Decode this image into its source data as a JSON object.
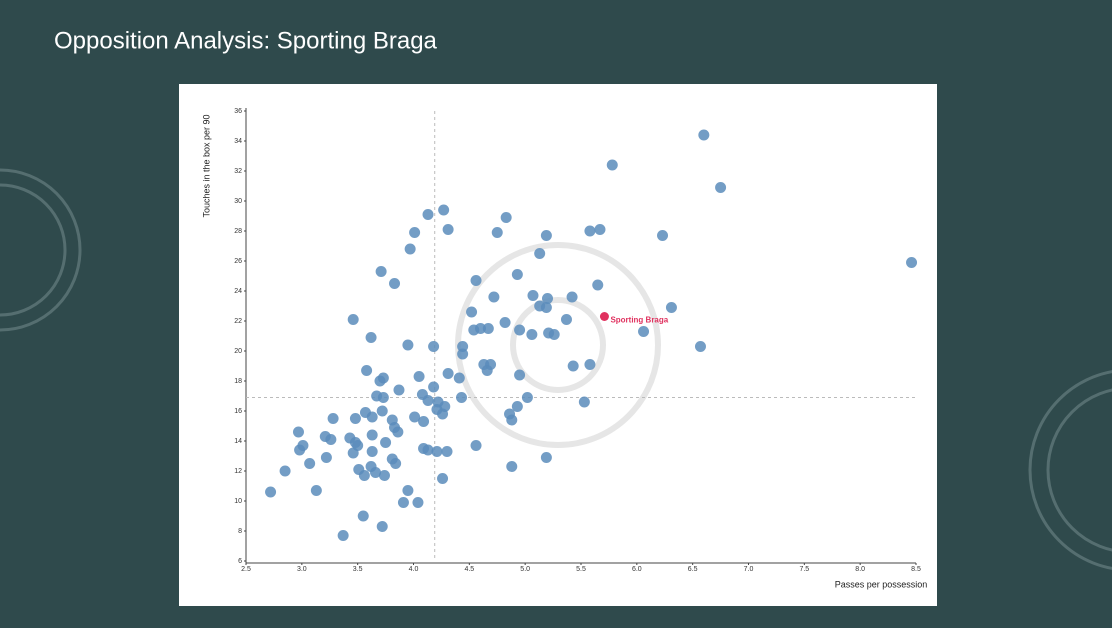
{
  "chart_data": {
    "type": "scatter",
    "title": "Opposition Analysis: Sporting Braga",
    "x_label": "Passes per possession",
    "y_label": "Touches in the box per 90",
    "color": "#5a8cbb",
    "x": [
      6.6,
      5.78,
      6.75,
      4.27,
      4.13,
      4.83,
      4.31,
      4.01,
      4.75,
      5.58,
      5.67,
      5.19,
      6.23,
      3.97,
      5.13,
      8.46,
      3.71,
      4.93,
      4.56,
      3.83,
      5.65,
      4.72,
      5.07,
      5.2,
      5.42,
      5.13,
      5.19,
      6.31,
      4.52,
      3.46,
      4.82,
      5.37,
      4.54,
      4.6,
      4.67,
      4.95,
      5.21,
      5.26,
      5.06,
      6.06,
      3.62,
      3.95,
      4.18,
      4.44,
      4.44,
      6.57,
      4.63,
      4.69,
      4.66,
      5.43,
      5.58,
      3.58,
      4.31,
      4.95,
      4.05,
      4.41,
      3.73,
      3.7,
      3.87,
      4.18,
      3.67,
      3.73,
      4.08,
      4.43,
      5.02,
      4.13,
      4.22,
      4.28,
      4.21,
      4.93,
      5.53,
      3.57,
      3.72,
      3.48,
      3.28,
      3.63,
      3.81,
      4.01,
      4.09,
      4.26,
      4.86,
      4.88,
      3.83,
      3.86,
      3.63,
      2.97,
      3.21,
      3.26,
      3.43,
      3.48,
      3.5,
      3.75,
      3.01,
      2.98,
      4.09,
      4.13,
      4.21,
      4.3,
      4.56,
      3.46,
      3.63,
      3.07,
      3.22,
      3.81,
      3.84,
      3.51,
      3.62,
      2.85,
      3.66,
      3.56,
      3.74,
      4.88,
      5.19,
      4.26,
      2.72,
      3.13,
      3.95,
      3.91,
      4.04,
      3.55,
      3.72,
      3.37
    ],
    "y": [
      34.4,
      32.4,
      30.9,
      29.4,
      29.1,
      28.9,
      28.1,
      27.9,
      27.9,
      28.0,
      28.1,
      27.7,
      27.7,
      26.8,
      26.5,
      25.9,
      25.3,
      25.1,
      24.7,
      24.5,
      24.4,
      23.6,
      23.7,
      23.5,
      23.6,
      23.0,
      22.9,
      22.9,
      22.6,
      22.1,
      21.9,
      22.1,
      21.4,
      21.5,
      21.5,
      21.4,
      21.2,
      21.1,
      21.1,
      21.3,
      20.9,
      20.4,
      20.3,
      20.3,
      19.8,
      20.3,
      19.1,
      19.1,
      18.7,
      19.0,
      19.1,
      18.7,
      18.5,
      18.4,
      18.3,
      18.2,
      18.2,
      18.0,
      17.4,
      17.6,
      17.0,
      16.9,
      17.1,
      16.9,
      16.9,
      16.7,
      16.6,
      16.3,
      16.1,
      16.3,
      16.6,
      15.9,
      16.0,
      15.5,
      15.5,
      15.6,
      15.4,
      15.6,
      15.3,
      15.8,
      15.8,
      15.4,
      14.9,
      14.6,
      14.4,
      14.6,
      14.3,
      14.1,
      14.2,
      13.9,
      13.7,
      13.9,
      13.7,
      13.4,
      13.5,
      13.4,
      13.3,
      13.3,
      13.7,
      13.2,
      13.3,
      12.5,
      12.9,
      12.8,
      12.5,
      12.1,
      12.3,
      12.0,
      11.9,
      11.7,
      11.7,
      12.3,
      12.9,
      11.5,
      10.6,
      10.7,
      10.7,
      9.9,
      9.9,
      9.0,
      8.3,
      7.7
    ],
    "highlight": {
      "label": "Sporting Braga",
      "x": 5.71,
      "y": 22.3,
      "color": "#e0325f"
    },
    "x_ref": 4.19,
    "y_ref": 16.9,
    "xlim": [
      2.5,
      8.5
    ],
    "ylim": [
      6,
      36
    ],
    "xticks": [
      2.5,
      {
        "value": 3,
        "label": "3.0"
      },
      3.5,
      {
        "value": 4,
        "label": "4.0"
      },
      4.5,
      {
        "value": 5,
        "label": "5.0"
      },
      5.5,
      {
        "value": 6,
        "label": "6.0"
      },
      6.5,
      {
        "value": 7,
        "label": "7.0"
      },
      7.5,
      {
        "value": 8,
        "label": "8.0"
      },
      8.5
    ],
    "yticks": [
      6,
      8,
      10,
      12,
      14,
      16,
      18,
      20,
      22,
      24,
      26,
      28,
      30,
      32,
      34,
      36
    ]
  }
}
